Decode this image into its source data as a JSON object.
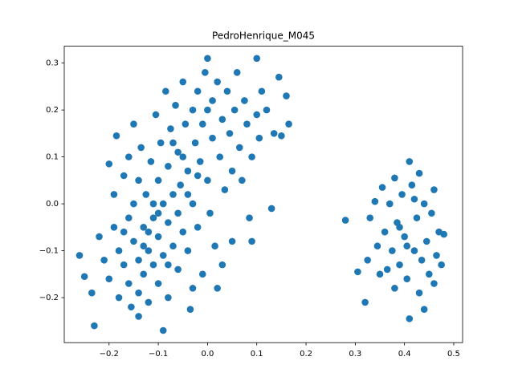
{
  "chart_data": {
    "type": "scatter",
    "title": "PedroHenrique_M045",
    "color": "#1f77b4",
    "x": [
      -0.26,
      -0.25,
      -0.235,
      -0.23,
      -0.22,
      -0.21,
      -0.2,
      -0.2,
      -0.19,
      -0.19,
      -0.185,
      -0.18,
      -0.18,
      -0.17,
      -0.17,
      -0.16,
      -0.16,
      -0.16,
      -0.155,
      -0.15,
      -0.15,
      -0.15,
      -0.14,
      -0.14,
      -0.14,
      -0.135,
      -0.13,
      -0.13,
      -0.125,
      -0.12,
      -0.12,
      -0.115,
      -0.11,
      -0.11,
      -0.105,
      -0.1,
      -0.1,
      -0.1,
      -0.095,
      -0.09,
      -0.09,
      -0.09,
      -0.085,
      -0.08,
      -0.08,
      -0.08,
      -0.075,
      -0.07,
      -0.07,
      -0.065,
      -0.06,
      -0.06,
      -0.055,
      -0.05,
      -0.05,
      -0.045,
      -0.04,
      -0.04,
      -0.035,
      -0.03,
      -0.03,
      -0.025,
      -0.02,
      -0.02,
      -0.015,
      -0.01,
      -0.01,
      -0.005,
      0.0,
      0.0,
      0.005,
      0.01,
      0.01,
      0.015,
      0.02,
      0.025,
      0.03,
      0.03,
      0.035,
      0.04,
      0.045,
      0.05,
      0.05,
      0.055,
      0.06,
      0.065,
      0.07,
      0.075,
      0.08,
      0.085,
      0.09,
      0.09,
      0.1,
      0.1,
      0.105,
      0.11,
      0.12,
      0.13,
      0.135,
      0.145,
      0.15,
      0.16,
      0.165,
      -0.12,
      -0.11,
      -0.08,
      -0.07,
      -0.05,
      -0.04,
      -0.02,
      0.0,
      -0.13,
      -0.1,
      -0.06,
      -0.17,
      -0.14,
      -0.03,
      0.02,
      0.28,
      0.305,
      0.32,
      0.325,
      0.33,
      0.34,
      0.345,
      0.35,
      0.355,
      0.36,
      0.365,
      0.37,
      0.375,
      0.38,
      0.38,
      0.385,
      0.39,
      0.395,
      0.4,
      0.405,
      0.41,
      0.41,
      0.415,
      0.42,
      0.425,
      0.43,
      0.43,
      0.435,
      0.44,
      0.445,
      0.45,
      0.455,
      0.46,
      0.465,
      0.47,
      0.475,
      0.48,
      0.44,
      0.405,
      0.39,
      0.42,
      0.46
    ],
    "values": [
      -0.11,
      -0.155,
      -0.19,
      -0.26,
      -0.07,
      -0.12,
      -0.16,
      0.085,
      0.02,
      -0.05,
      0.145,
      -0.1,
      -0.2,
      0.06,
      -0.13,
      0.1,
      -0.03,
      -0.17,
      -0.22,
      0.17,
      0.0,
      -0.08,
      -0.12,
      0.05,
      -0.19,
      0.12,
      -0.05,
      -0.15,
      0.02,
      -0.1,
      -0.21,
      0.09,
      -0.03,
      -0.13,
      0.19,
      0.05,
      -0.07,
      -0.17,
      0.13,
      -0.27,
      0.0,
      -0.11,
      0.24,
      0.08,
      -0.04,
      -0.2,
      0.16,
      0.02,
      -0.09,
      0.21,
      -0.14,
      0.11,
      0.04,
      -0.06,
      0.26,
      0.17,
      -0.1,
      0.07,
      -0.225,
      0.2,
      0.0,
      0.13,
      -0.05,
      0.24,
      0.09,
      -0.15,
      0.17,
      0.28,
      0.31,
      0.05,
      -0.02,
      0.22,
      0.14,
      -0.09,
      0.26,
      0.1,
      0.18,
      -0.13,
      0.03,
      0.24,
      0.15,
      -0.08,
      0.07,
      0.2,
      0.28,
      0.12,
      0.05,
      0.22,
      0.17,
      -0.03,
      0.1,
      -0.08,
      0.31,
      0.19,
      0.14,
      0.24,
      0.2,
      -0.01,
      0.15,
      0.27,
      0.145,
      0.23,
      0.17,
      -0.06,
      0.0,
      -0.13,
      0.13,
      0.1,
      0.02,
      0.06,
      0.2,
      -0.09,
      -0.02,
      -0.02,
      -0.06,
      -0.24,
      -0.18,
      -0.18,
      -0.035,
      -0.145,
      -0.21,
      -0.12,
      -0.03,
      0.005,
      -0.09,
      -0.15,
      0.035,
      -0.06,
      -0.14,
      0.0,
      -0.1,
      -0.18,
      0.055,
      -0.04,
      -0.13,
      0.02,
      -0.07,
      -0.16,
      -0.245,
      0.09,
      0.04,
      -0.1,
      -0.03,
      0.065,
      -0.19,
      -0.12,
      0.0,
      -0.08,
      -0.15,
      -0.02,
      0.03,
      -0.11,
      -0.06,
      -0.13,
      -0.065,
      -0.225,
      -0.09,
      -0.05,
      0.01,
      -0.17
    ],
    "xlim": [
      -0.291,
      0.518
    ],
    "xticks": [
      {
        "value": -0.2,
        "label": "−0.2"
      },
      {
        "value": -0.1,
        "label": "−0.1"
      },
      {
        "value": 0,
        "label": "0.0"
      },
      0.1,
      0.2,
      0.3,
      0.4,
      0.5
    ],
    "ylim": [
      -0.296,
      0.336
    ],
    "yticks": [
      {
        "value": -0.2,
        "label": "−0.2"
      },
      {
        "value": -0.1,
        "label": "−0.1"
      },
      {
        "value": 0,
        "label": "0.0"
      },
      0.1,
      0.2,
      0.3
    ]
  }
}
